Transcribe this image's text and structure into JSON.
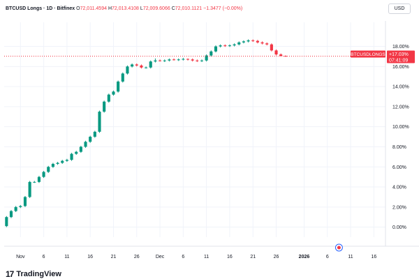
{
  "header": {
    "symbol": "BTCUSD Longs · 1D · Bitfinex",
    "open_label": "O",
    "open": "72,011.4594",
    "high_label": "H",
    "high": "72,013.4108",
    "low_label": "L",
    "low": "72,009.6066",
    "close_label": "C",
    "close": "72,010.1121",
    "change": "−1.3477 (−0.00%)"
  },
  "currency_badge": "USD",
  "price_label": {
    "title": "BTCUSDLONGS",
    "value": "+17.03%",
    "countdown": "07:41:09"
  },
  "brand": {
    "mark": "17",
    "name": "TradingView"
  },
  "colors": {
    "up": "#089981",
    "down": "#f23645",
    "grid": "#f0f3fa",
    "axis_text": "#131722",
    "price_line": "#f23645"
  },
  "chart_data": {
    "type": "candlestick",
    "yaxis": {
      "ticks": [
        "0.00%",
        "2.00%",
        "4.00%",
        "6.00%",
        "8.00%",
        "10.00%",
        "12.00%",
        "14.00%",
        "16.00%",
        "18.00%"
      ],
      "tick_values": [
        0,
        2,
        4,
        6,
        8,
        10,
        12,
        14,
        16,
        18
      ],
      "range": [
        -1.0,
        20.4
      ]
    },
    "xaxis": {
      "ticks": [
        {
          "label": "Nov",
          "index": 3
        },
        {
          "label": "6",
          "index": 8
        },
        {
          "label": "11",
          "index": 13
        },
        {
          "label": "16",
          "index": 18
        },
        {
          "label": "21",
          "index": 23
        },
        {
          "label": "26",
          "index": 28
        },
        {
          "label": "Dec",
          "index": 33
        },
        {
          "label": "6",
          "index": 38
        },
        {
          "label": "11",
          "index": 43
        },
        {
          "label": "16",
          "index": 48
        },
        {
          "label": "21",
          "index": 53
        },
        {
          "label": "26",
          "index": 58
        },
        {
          "label": "2026",
          "index": 64,
          "bold": true
        },
        {
          "label": "6",
          "index": 69
        },
        {
          "label": "11",
          "index": 74
        },
        {
          "label": "16",
          "index": 79
        }
      ],
      "range": [
        -0.5,
        81.5
      ]
    },
    "last_value": 17.03,
    "candles": [
      [
        0.1,
        1.0,
        0.0,
        1.1,
        "up"
      ],
      [
        1.0,
        1.6,
        0.9,
        1.7,
        "up"
      ],
      [
        1.6,
        2.0,
        1.5,
        2.1,
        "up"
      ],
      [
        2.0,
        2.1,
        1.9,
        2.2,
        "up"
      ],
      [
        2.1,
        3.0,
        2.0,
        3.1,
        "up"
      ],
      [
        3.0,
        4.5,
        2.9,
        4.6,
        "up"
      ],
      [
        4.5,
        4.5,
        4.4,
        4.6,
        "up"
      ],
      [
        4.5,
        5.0,
        4.4,
        5.1,
        "up"
      ],
      [
        5.0,
        5.5,
        4.9,
        5.6,
        "up"
      ],
      [
        5.5,
        6.0,
        5.4,
        6.1,
        "up"
      ],
      [
        6.0,
        6.3,
        5.9,
        6.4,
        "up"
      ],
      [
        6.3,
        6.4,
        6.2,
        6.5,
        "up"
      ],
      [
        6.4,
        6.6,
        6.3,
        6.7,
        "up"
      ],
      [
        6.6,
        6.7,
        6.5,
        6.8,
        "up"
      ],
      [
        6.7,
        7.3,
        6.6,
        7.4,
        "up"
      ],
      [
        7.3,
        7.5,
        7.2,
        7.6,
        "up"
      ],
      [
        7.5,
        8.0,
        7.4,
        8.1,
        "up"
      ],
      [
        8.0,
        8.5,
        7.9,
        8.6,
        "up"
      ],
      [
        8.5,
        9.0,
        8.4,
        9.1,
        "up"
      ],
      [
        9.0,
        9.5,
        8.9,
        9.6,
        "up"
      ],
      [
        9.5,
        11.5,
        9.4,
        11.6,
        "up"
      ],
      [
        11.5,
        12.5,
        11.4,
        12.6,
        "up"
      ],
      [
        12.5,
        13.2,
        12.4,
        13.3,
        "up"
      ],
      [
        13.2,
        13.5,
        13.1,
        13.6,
        "up"
      ],
      [
        13.5,
        14.5,
        13.4,
        14.6,
        "up"
      ],
      [
        14.5,
        15.3,
        14.4,
        15.4,
        "up"
      ],
      [
        15.3,
        16.0,
        15.2,
        16.1,
        "up"
      ],
      [
        16.0,
        16.2,
        15.9,
        16.3,
        "up"
      ],
      [
        16.2,
        16.1,
        16.0,
        16.3,
        "down"
      ],
      [
        16.1,
        15.9,
        15.8,
        16.2,
        "down"
      ],
      [
        15.9,
        15.9,
        15.8,
        16.0,
        "up"
      ],
      [
        15.9,
        16.5,
        15.8,
        16.6,
        "up"
      ],
      [
        16.5,
        16.6,
        16.4,
        16.8,
        "up"
      ],
      [
        16.6,
        16.55,
        16.5,
        16.7,
        "down"
      ],
      [
        16.55,
        16.6,
        16.45,
        16.7,
        "up"
      ],
      [
        16.6,
        16.7,
        16.5,
        16.8,
        "up"
      ],
      [
        16.7,
        16.65,
        16.6,
        16.8,
        "down"
      ],
      [
        16.65,
        16.7,
        16.55,
        16.8,
        "up"
      ],
      [
        16.7,
        16.75,
        16.6,
        16.85,
        "up"
      ],
      [
        16.75,
        16.7,
        16.6,
        16.8,
        "down"
      ],
      [
        16.7,
        16.6,
        16.5,
        16.8,
        "down"
      ],
      [
        16.6,
        16.55,
        16.45,
        16.7,
        "down"
      ],
      [
        16.55,
        16.6,
        16.45,
        16.7,
        "up"
      ],
      [
        16.6,
        17.1,
        16.5,
        17.2,
        "up"
      ],
      [
        17.1,
        17.5,
        17.0,
        17.6,
        "up"
      ],
      [
        17.5,
        18.0,
        17.4,
        18.1,
        "up"
      ],
      [
        18.0,
        18.1,
        17.9,
        18.2,
        "up"
      ],
      [
        18.1,
        18.05,
        17.95,
        18.2,
        "down"
      ],
      [
        18.05,
        18.1,
        17.95,
        18.2,
        "up"
      ],
      [
        18.1,
        18.2,
        18.0,
        18.3,
        "up"
      ],
      [
        18.2,
        18.4,
        18.1,
        18.5,
        "up"
      ],
      [
        18.4,
        18.5,
        18.3,
        18.6,
        "up"
      ],
      [
        18.5,
        18.6,
        18.4,
        18.7,
        "up"
      ],
      [
        18.6,
        18.55,
        18.45,
        18.7,
        "down"
      ],
      [
        18.55,
        18.4,
        18.3,
        18.65,
        "down"
      ],
      [
        18.4,
        18.3,
        18.2,
        18.5,
        "down"
      ],
      [
        18.3,
        18.2,
        18.1,
        18.4,
        "down"
      ],
      [
        18.2,
        17.6,
        17.5,
        18.3,
        "down"
      ],
      [
        17.6,
        17.2,
        17.1,
        17.7,
        "down"
      ],
      [
        17.2,
        17.05,
        17.0,
        17.3,
        "down"
      ],
      [
        17.05,
        17.03,
        16.98,
        17.1,
        "down"
      ]
    ]
  }
}
